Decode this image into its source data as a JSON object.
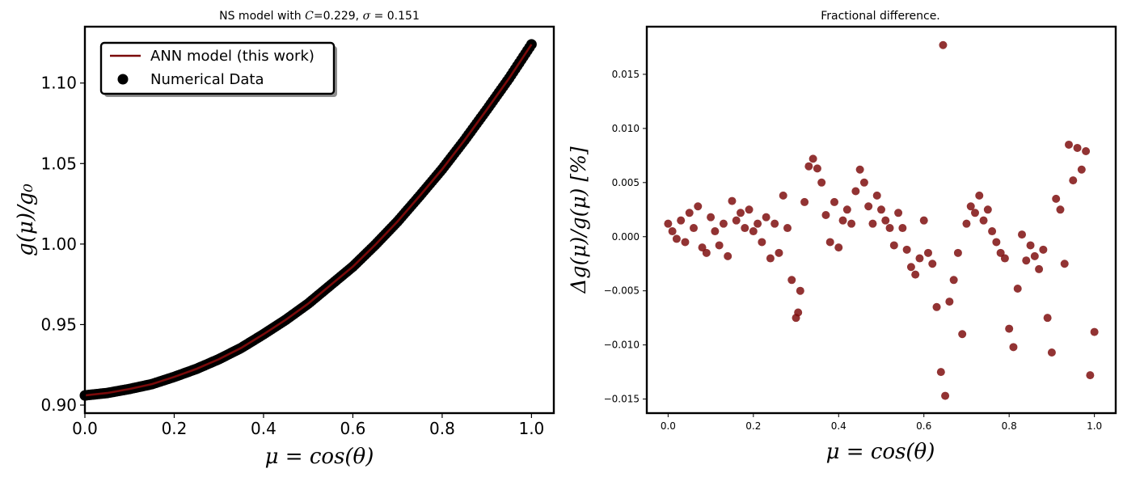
{
  "colors": {
    "model_line": "#7a0a0a",
    "numerical_marker": "#000000",
    "residual_marker": "#7f0f0f",
    "axes": "#000000"
  },
  "chart_data": [
    {
      "type": "line",
      "title": "NS model with 𝐶=0.229, σ = 0.151",
      "xlabel": "μ = cos(θ)",
      "ylabel": "g(μ)/g₀",
      "xlim": [
        0.0,
        1.05
      ],
      "ylim": [
        0.895,
        1.135
      ],
      "xticks": [
        0.0,
        0.2,
        0.4,
        0.6,
        0.8,
        1.0
      ],
      "xtick_labels": [
        "0.0",
        "0.2",
        "0.4",
        "0.6",
        "0.8",
        "1.0"
      ],
      "yticks": [
        0.9,
        0.95,
        1.0,
        1.05,
        1.1
      ],
      "ytick_labels": [
        "0.90",
        "0.95",
        "1.00",
        "1.05",
        "1.10"
      ],
      "grid": false,
      "legend_position": "top-left",
      "series": [
        {
          "name": "ANN model (this work)",
          "kind": "line",
          "x": [
            0.0,
            0.05,
            0.1,
            0.15,
            0.2,
            0.25,
            0.3,
            0.35,
            0.4,
            0.45,
            0.5,
            0.55,
            0.6,
            0.65,
            0.7,
            0.75,
            0.8,
            0.85,
            0.9,
            0.95,
            1.0
          ],
          "y": [
            0.906,
            0.9075,
            0.91,
            0.913,
            0.9175,
            0.9225,
            0.9285,
            0.9355,
            0.944,
            0.953,
            0.963,
            0.9745,
            0.986,
            0.9995,
            1.014,
            1.03,
            1.0465,
            1.0645,
            1.0835,
            1.103,
            1.124
          ]
        },
        {
          "name": "Numerical Data",
          "kind": "scatter",
          "x": [
            0.0,
            0.05,
            0.1,
            0.15,
            0.2,
            0.25,
            0.3,
            0.35,
            0.4,
            0.45,
            0.5,
            0.55,
            0.6,
            0.65,
            0.7,
            0.75,
            0.8,
            0.85,
            0.9,
            0.95,
            1.0
          ],
          "y": [
            0.906,
            0.9075,
            0.91,
            0.913,
            0.9175,
            0.9225,
            0.9285,
            0.9355,
            0.944,
            0.953,
            0.963,
            0.9745,
            0.986,
            0.9995,
            1.014,
            1.03,
            1.0465,
            1.0645,
            1.0835,
            1.103,
            1.124
          ]
        }
      ]
    },
    {
      "type": "scatter",
      "title": "Fractional difference.",
      "xlabel": "μ = cos(θ)",
      "ylabel": "Δg(μ)/g(μ)  [%]",
      "xlim": [
        -0.05,
        1.05
      ],
      "ylim": [
        -0.0163,
        0.0194
      ],
      "xticks": [
        0.0,
        0.2,
        0.4,
        0.6,
        0.8,
        1.0
      ],
      "xtick_labels": [
        "0.0",
        "0.2",
        "0.4",
        "0.6",
        "0.8",
        "1.0"
      ],
      "yticks": [
        -0.015,
        -0.01,
        -0.005,
        0.0,
        0.005,
        0.01,
        0.015
      ],
      "ytick_labels": [
        "−0.015",
        "−0.010",
        "−0.005",
        "0.000",
        "0.005",
        "0.010",
        "0.015"
      ],
      "grid": false,
      "series": [
        {
          "name": "",
          "x": [
            0.0,
            0.01,
            0.02,
            0.03,
            0.04,
            0.05,
            0.06,
            0.07,
            0.08,
            0.09,
            0.1,
            0.11,
            0.12,
            0.13,
            0.14,
            0.15,
            0.16,
            0.17,
            0.18,
            0.19,
            0.2,
            0.21,
            0.22,
            0.23,
            0.24,
            0.25,
            0.26,
            0.27,
            0.28,
            0.29,
            0.3,
            0.305,
            0.31,
            0.32,
            0.33,
            0.34,
            0.35,
            0.36,
            0.37,
            0.38,
            0.39,
            0.4,
            0.41,
            0.42,
            0.43,
            0.44,
            0.45,
            0.46,
            0.47,
            0.48,
            0.49,
            0.5,
            0.51,
            0.52,
            0.53,
            0.54,
            0.55,
            0.56,
            0.57,
            0.58,
            0.59,
            0.6,
            0.61,
            0.62,
            0.63,
            0.64,
            0.645,
            0.65,
            0.66,
            0.67,
            0.68,
            0.69,
            0.7,
            0.71,
            0.72,
            0.73,
            0.74,
            0.75,
            0.76,
            0.77,
            0.78,
            0.79,
            0.8,
            0.81,
            0.82,
            0.83,
            0.84,
            0.85,
            0.86,
            0.87,
            0.88,
            0.89,
            0.9,
            0.91,
            0.92,
            0.93,
            0.94,
            0.95,
            0.96,
            0.97,
            0.98,
            0.99,
            1.0
          ],
          "y": [
            0.0012,
            0.0005,
            -0.0002,
            0.0015,
            -0.0005,
            0.0022,
            0.0008,
            0.0028,
            -0.001,
            -0.0015,
            0.0018,
            0.0005,
            -0.0008,
            0.0012,
            -0.0018,
            0.0033,
            0.0015,
            0.0022,
            0.0008,
            0.0025,
            0.0005,
            0.0012,
            -0.0005,
            0.0018,
            -0.002,
            0.0012,
            -0.0015,
            0.0038,
            0.0008,
            -0.004,
            -0.0075,
            -0.007,
            -0.005,
            0.0032,
            0.0065,
            0.0072,
            0.0063,
            0.005,
            0.002,
            -0.0005,
            0.0032,
            -0.001,
            0.0015,
            0.0025,
            0.0012,
            0.0042,
            0.0062,
            0.005,
            0.0028,
            0.0012,
            0.0038,
            0.0025,
            0.0015,
            0.0008,
            -0.0008,
            0.0022,
            0.0008,
            -0.0012,
            -0.0028,
            -0.0035,
            -0.002,
            0.0015,
            -0.0015,
            -0.0025,
            -0.0065,
            -0.0125,
            0.0177,
            -0.0147,
            -0.006,
            -0.004,
            -0.0015,
            -0.009,
            0.0012,
            0.0028,
            0.0022,
            0.0038,
            0.0015,
            0.0025,
            0.0005,
            -0.0005,
            -0.0015,
            -0.002,
            -0.0085,
            -0.0102,
            -0.0048,
            0.0002,
            -0.0022,
            -0.0008,
            -0.0018,
            -0.003,
            -0.0012,
            -0.0075,
            -0.0107,
            0.0035,
            0.0025,
            -0.0025,
            0.0085,
            0.0052,
            0.0082,
            0.0062,
            0.0079,
            -0.0128,
            -0.0088
          ]
        }
      ]
    }
  ],
  "legend": {
    "line_label": "ANN model (this work)",
    "scatter_label": "Numerical Data"
  },
  "titles": {
    "left": "NS model with C=0.229, σ = 0.151",
    "right": "Fractional difference."
  }
}
